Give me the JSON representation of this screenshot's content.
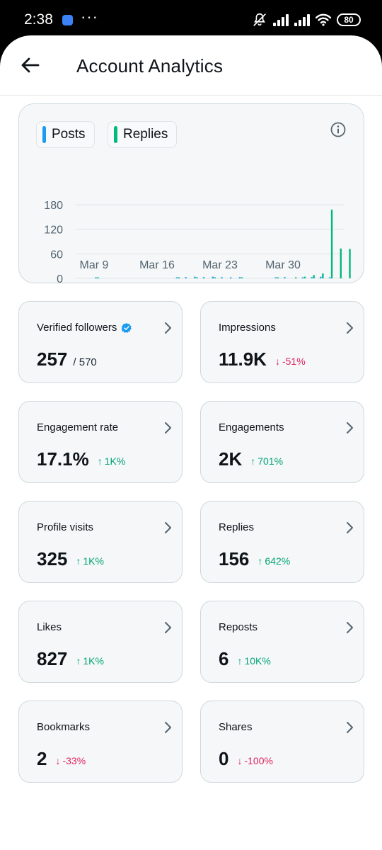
{
  "status_bar": {
    "time": "2:38",
    "dots": "···",
    "battery": "80"
  },
  "header": {
    "title": "Account Analytics"
  },
  "chart": {
    "legend": [
      {
        "label": "Posts",
        "color": "#1d9bf0"
      },
      {
        "label": "Replies",
        "color": "#00ba7c"
      }
    ]
  },
  "chart_data": {
    "type": "bar",
    "yticks": [
      "180",
      "120",
      "60",
      "0"
    ],
    "ylim": [
      0,
      180
    ],
    "xticks": [
      "Mar 9",
      "Mar 16",
      "Mar 23",
      "Mar 30"
    ],
    "series": [
      {
        "name": "Posts",
        "color": "#1d9bf0",
        "x": [
          "Mar 9",
          "Mar 18",
          "Mar 19",
          "Mar 20",
          "Mar 21",
          "Mar 22",
          "Mar 23",
          "Mar 24",
          "Mar 25",
          "Mar 29",
          "Mar 30",
          "Apr 1",
          "Apr 2",
          "Apr 3",
          "Apr 4"
        ],
        "values": [
          1,
          2,
          3,
          4,
          3,
          4,
          3,
          2,
          3,
          2,
          3,
          2,
          3,
          4,
          2
        ]
      },
      {
        "name": "Replies",
        "color": "#00ba7c",
        "x": [
          "Mar 9",
          "Mar 18",
          "Mar 20",
          "Mar 22",
          "Mar 25",
          "Mar 29",
          "Mar 31",
          "Apr 1",
          "Apr 2",
          "Apr 3",
          "Apr 4",
          "Apr 5",
          "Apr 6"
        ],
        "values": [
          1,
          2,
          2,
          2,
          2,
          1,
          2,
          4,
          8,
          12,
          168,
          73,
          72
        ]
      }
    ],
    "grid": true
  },
  "cards": [
    {
      "label": "Verified followers",
      "value": "257",
      "sub": "/ 570",
      "verified": true
    },
    {
      "label": "Impressions",
      "value": "11.9K",
      "delta": "-51%",
      "direction": "down"
    },
    {
      "label": "Engagement rate",
      "value": "17.1%",
      "delta": "1K%",
      "direction": "up"
    },
    {
      "label": "Engagements",
      "value": "2K",
      "delta": "701%",
      "direction": "up"
    },
    {
      "label": "Profile visits",
      "value": "325",
      "delta": "1K%",
      "direction": "up"
    },
    {
      "label": "Replies",
      "value": "156",
      "delta": "642%",
      "direction": "up"
    },
    {
      "label": "Likes",
      "value": "827",
      "delta": "1K%",
      "direction": "up"
    },
    {
      "label": "Reposts",
      "value": "6",
      "delta": "10K%",
      "direction": "up"
    },
    {
      "label": "Bookmarks",
      "value": "2",
      "delta": "-33%",
      "direction": "down"
    },
    {
      "label": "Shares",
      "value": "0",
      "delta": "-100%",
      "direction": "down"
    }
  ],
  "icons": {
    "back": "arrow-left-icon",
    "info": "info-icon",
    "chevron": "chevron-right-icon",
    "verified": "verified-badge-icon",
    "nav": [
      "menu-icon",
      "home-square-icon",
      "back-triangle-icon"
    ]
  },
  "colors": {
    "up": "#00a572",
    "down": "#e0245e",
    "verified": "#1d9bf0"
  }
}
